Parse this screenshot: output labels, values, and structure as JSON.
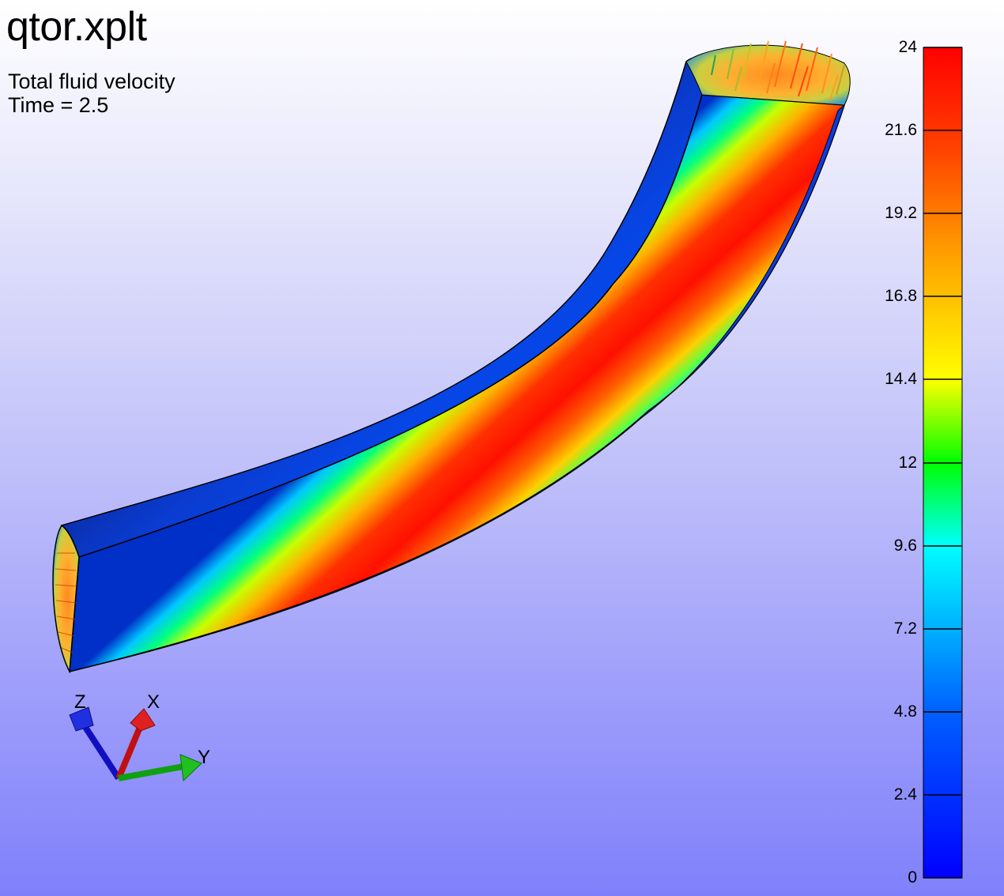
{
  "title": "qtor.xplt",
  "subtitle": "Total fluid velocity",
  "time_label": "Time = 2.5",
  "axis_triad": {
    "z_label": "Z",
    "x_label": "X",
    "y_label": "Y"
  },
  "legend": {
    "min": 0,
    "max": 24,
    "ticks": [
      "24",
      "21.6",
      "19.2",
      "16.8",
      "14.4",
      "12",
      "9.6",
      "7.2",
      "4.8",
      "2.4",
      "0"
    ],
    "colormap": [
      "#0000ff",
      "#0a60ff",
      "#00c8ff",
      "#00ffff",
      "#00ff00",
      "#ffff00",
      "#ffa000",
      "#ff4000",
      "#ff0000"
    ]
  }
}
